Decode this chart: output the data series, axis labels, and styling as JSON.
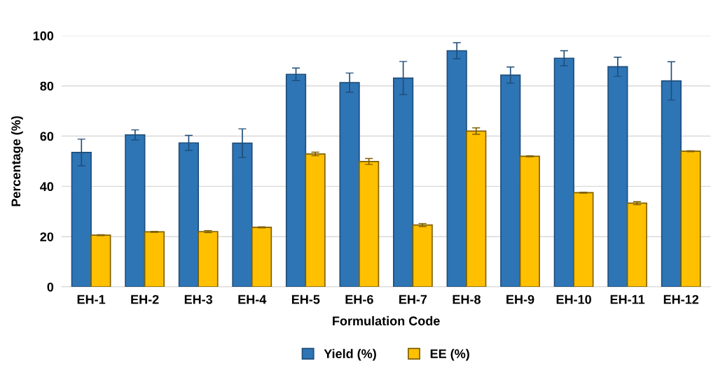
{
  "chart_data": {
    "type": "bar",
    "xlabel": "Formulation Code",
    "ylabel": "Percentage (%)",
    "categories": [
      "EH-1",
      "EH-2",
      "EH-3",
      "EH-4",
      "EH-5",
      "EH-6",
      "EH-7",
      "EH-8",
      "EH-9",
      "EH-10",
      "EH-11",
      "EH-12"
    ],
    "series": [
      {
        "name": "Yield (%)",
        "color": "#2e75b6",
        "values": [
          53.5,
          60.5,
          57.3,
          57.2,
          84.6,
          81.3,
          83.1,
          94.0,
          84.3,
          91.0,
          87.6,
          82.0
        ],
        "errors": [
          5.3,
          2.0,
          3.0,
          5.7,
          2.5,
          3.8,
          6.6,
          3.2,
          3.2,
          3.0,
          3.8,
          7.6
        ]
      },
      {
        "name": "EE (%)",
        "color": "#ffc000",
        "values": [
          20.6,
          21.9,
          22.0,
          23.7,
          52.9,
          49.9,
          24.6,
          62.0,
          52.0,
          37.5,
          33.3,
          54.0
        ],
        "errors": [
          0.2,
          0.2,
          0.4,
          0.2,
          0.7,
          1.2,
          0.6,
          1.3,
          0.2,
          0.2,
          0.6,
          0.2
        ]
      }
    ],
    "ylim": [
      0,
      100
    ],
    "yticks": [
      0,
      20,
      40,
      60,
      80,
      100
    ],
    "grid": "y",
    "legend": "bottom"
  }
}
